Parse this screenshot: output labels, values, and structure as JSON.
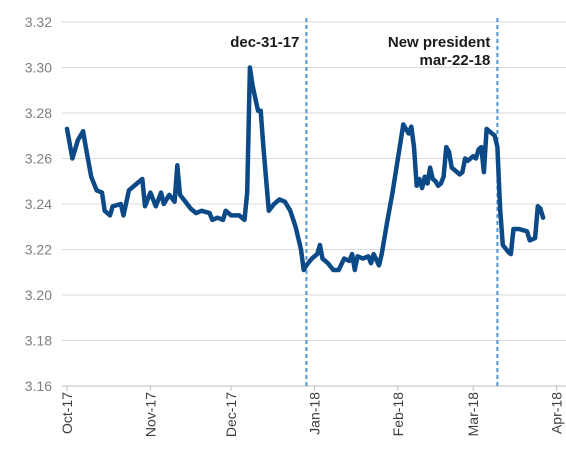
{
  "chart_data": {
    "type": "line",
    "title": "",
    "xlabel": "",
    "ylabel": "",
    "ylim": [
      3.16,
      3.32
    ],
    "yticks": [
      "3.16",
      "3.18",
      "3.20",
      "3.22",
      "3.24",
      "3.26",
      "3.28",
      "3.30",
      "3.32"
    ],
    "xticks": [
      {
        "label": "Oct-17",
        "x": 0
      },
      {
        "label": "Nov-17",
        "x": 31
      },
      {
        "label": "Dec-17",
        "x": 61
      },
      {
        "label": "Jan-18",
        "x": 92
      },
      {
        "label": "Feb-18",
        "x": 123
      },
      {
        "label": "Mar-18",
        "x": 151
      },
      {
        "label": "Apr-18",
        "x": 182
      }
    ],
    "grid": "horizontal",
    "line_color": "#0b4a86",
    "annotation_color": "#4f93cf",
    "series": [
      {
        "points": [
          [
            0,
            3.273
          ],
          [
            2,
            3.26
          ],
          [
            4,
            3.268
          ],
          [
            6,
            3.272
          ],
          [
            7,
            3.265
          ],
          [
            9,
            3.252
          ],
          [
            11,
            3.246
          ],
          [
            13,
            3.245
          ],
          [
            14,
            3.237
          ],
          [
            16,
            3.235
          ],
          [
            17,
            3.239
          ],
          [
            20,
            3.24
          ],
          [
            21,
            3.235
          ],
          [
            23,
            3.246
          ],
          [
            26,
            3.249
          ],
          [
            28,
            3.251
          ],
          [
            29,
            3.239
          ],
          [
            31,
            3.245
          ],
          [
            33,
            3.239
          ],
          [
            35,
            3.245
          ],
          [
            36,
            3.24
          ],
          [
            38,
            3.244
          ],
          [
            40,
            3.241
          ],
          [
            41,
            3.257
          ],
          [
            42,
            3.244
          ],
          [
            44,
            3.241
          ],
          [
            46,
            3.238
          ],
          [
            48,
            3.236
          ],
          [
            50,
            3.237
          ],
          [
            53,
            3.236
          ],
          [
            54,
            3.233
          ],
          [
            56,
            3.234
          ],
          [
            58,
            3.233
          ],
          [
            59,
            3.237
          ],
          [
            61,
            3.235
          ],
          [
            64,
            3.235
          ],
          [
            66,
            3.233
          ],
          [
            67,
            3.245
          ],
          [
            68,
            3.3
          ],
          [
            69,
            3.292
          ],
          [
            71,
            3.281
          ],
          [
            72,
            3.281
          ],
          [
            73,
            3.265
          ],
          [
            75,
            3.237
          ],
          [
            77,
            3.24
          ],
          [
            79,
            3.242
          ],
          [
            81,
            3.241
          ],
          [
            83,
            3.237
          ],
          [
            85,
            3.23
          ],
          [
            86,
            3.225
          ],
          [
            87,
            3.22
          ],
          [
            88,
            3.211
          ],
          [
            89,
            3.213
          ],
          [
            91,
            3.216
          ],
          [
            93,
            3.218
          ],
          [
            94,
            3.222
          ],
          [
            95,
            3.216
          ],
          [
            97,
            3.214
          ],
          [
            99,
            3.211
          ],
          [
            101,
            3.211
          ],
          [
            103,
            3.216
          ],
          [
            105,
            3.215
          ],
          [
            106,
            3.218
          ],
          [
            107,
            3.211
          ],
          [
            108,
            3.217
          ],
          [
            110,
            3.216
          ],
          [
            112,
            3.217
          ],
          [
            113,
            3.214
          ],
          [
            114,
            3.218
          ],
          [
            116,
            3.213
          ],
          [
            117,
            3.218
          ],
          [
            119,
            3.232
          ],
          [
            121,
            3.245
          ],
          [
            123,
            3.26
          ],
          [
            125,
            3.275
          ],
          [
            127,
            3.271
          ],
          [
            128,
            3.274
          ],
          [
            129,
            3.265
          ],
          [
            130,
            3.248
          ],
          [
            131,
            3.251
          ],
          [
            132,
            3.247
          ],
          [
            133,
            3.252
          ],
          [
            134,
            3.249
          ],
          [
            135,
            3.256
          ],
          [
            136,
            3.251
          ],
          [
            137,
            3.25
          ],
          [
            138,
            3.248
          ],
          [
            139,
            3.249
          ],
          [
            140,
            3.252
          ],
          [
            141,
            3.265
          ],
          [
            142,
            3.263
          ],
          [
            143,
            3.256
          ],
          [
            144,
            3.255
          ],
          [
            146,
            3.253
          ],
          [
            147,
            3.254
          ],
          [
            148,
            3.26
          ],
          [
            149,
            3.259
          ],
          [
            151,
            3.261
          ],
          [
            152,
            3.26
          ],
          [
            153,
            3.264
          ],
          [
            154,
            3.265
          ],
          [
            155,
            3.254
          ],
          [
            156,
            3.273
          ],
          [
            157,
            3.272
          ],
          [
            159,
            3.27
          ],
          [
            160,
            3.265
          ],
          [
            161,
            3.238
          ],
          [
            162,
            3.222
          ],
          [
            164,
            3.219
          ],
          [
            165,
            3.218
          ],
          [
            166,
            3.229
          ],
          [
            168,
            3.229
          ],
          [
            171,
            3.228
          ],
          [
            172,
            3.224
          ],
          [
            174,
            3.225
          ],
          [
            175,
            3.239
          ],
          [
            176,
            3.238
          ],
          [
            177,
            3.234
          ]
        ]
      }
    ],
    "annotations": [
      {
        "x": 89,
        "lines": [
          "dec-31-17"
        ]
      },
      {
        "x": 160,
        "lines": [
          "New president",
          "mar-22-18"
        ]
      }
    ]
  }
}
